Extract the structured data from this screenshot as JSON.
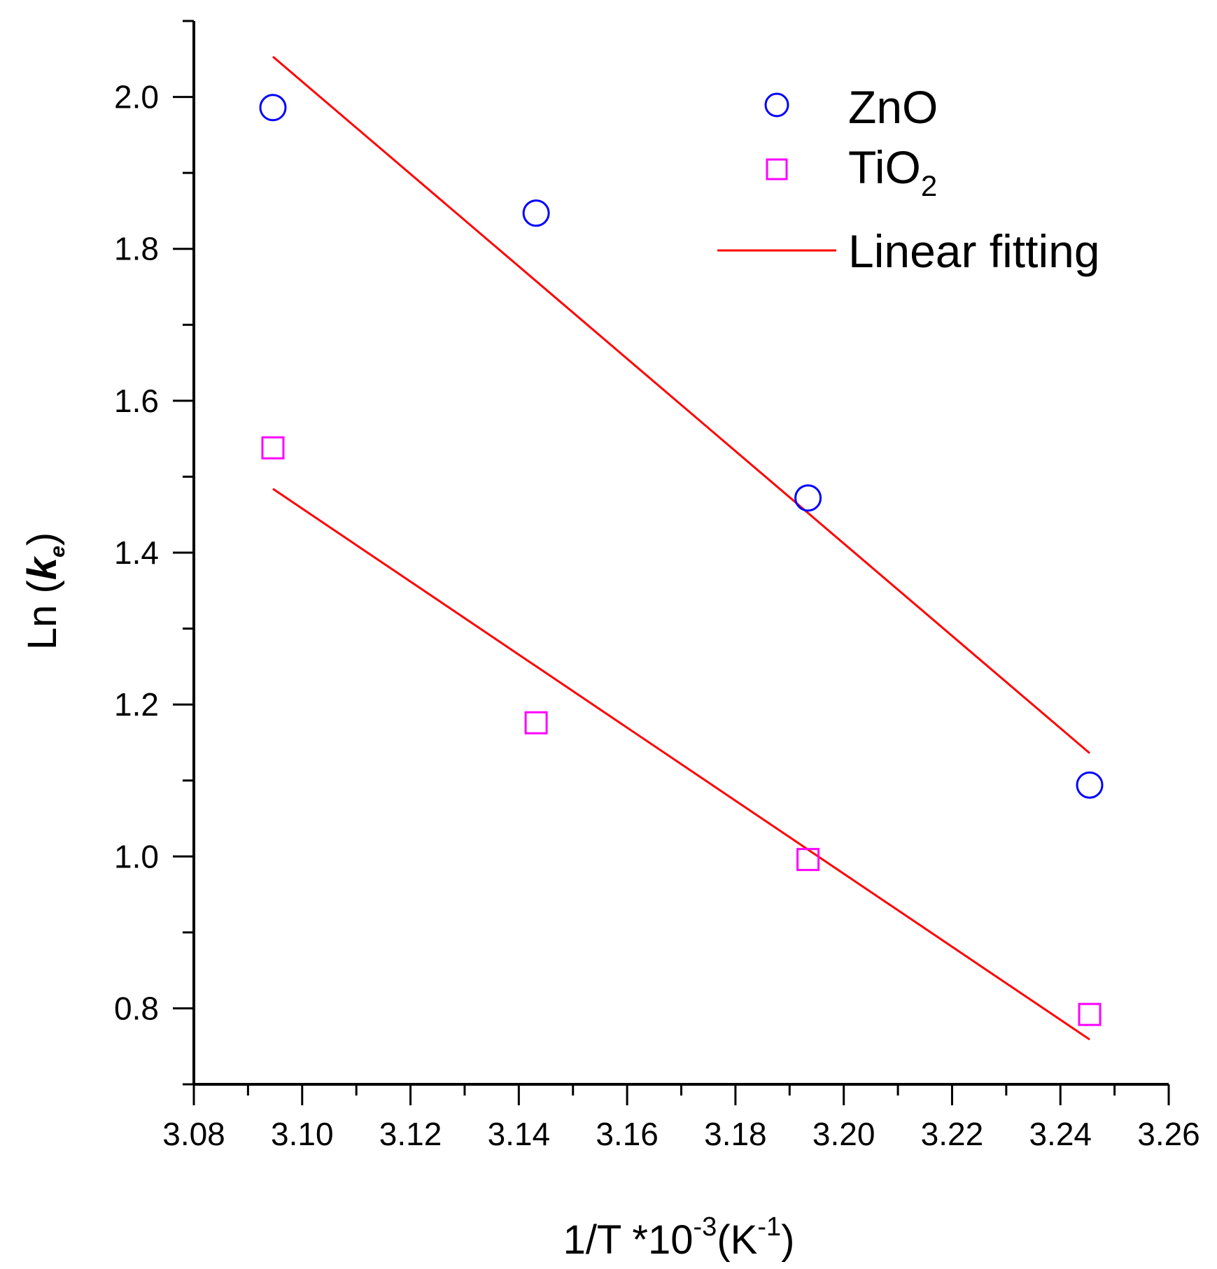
{
  "chart_data": {
    "type": "scatter",
    "title": "",
    "xlabel": {
      "base": "1/T *10",
      "sup1": "-3",
      "mid": "(K",
      "sup2": "-1",
      "end": ")"
    },
    "ylabel": {
      "base": "Ln (",
      "k": "k",
      "sub": "e",
      "end": ")"
    },
    "xlim": [
      3.08,
      3.26
    ],
    "ylim": [
      0.7,
      2.1
    ],
    "xticks": [
      "3.08",
      "3.10",
      "3.12",
      "3.14",
      "3.16",
      "3.18",
      "3.20",
      "3.22",
      "3.24",
      "3.26"
    ],
    "yticks": [
      "0.8",
      "1.0",
      "1.2",
      "1.4",
      "1.6",
      "1.8",
      "2.0"
    ],
    "grid": false,
    "legend_position": "top-right",
    "series": [
      {
        "name": "ZnO",
        "marker": "circle",
        "color": "#0000ff",
        "x": [
          3.0946,
          3.1432,
          3.1934,
          3.2454
        ],
        "y": [
          1.986,
          1.847,
          1.472,
          1.094
        ]
      },
      {
        "name": "TiO",
        "name_sub": "2",
        "marker": "square",
        "color": "#ff00ff",
        "x": [
          3.0946,
          3.1432,
          3.1934,
          3.2454
        ],
        "y": [
          1.538,
          1.176,
          0.996,
          0.792
        ]
      }
    ],
    "fits": [
      {
        "name": "Linear fitting",
        "color": "#ff0000",
        "for_series": "ZnO",
        "x": [
          3.0946,
          3.2454
        ],
        "y": [
          2.053,
          1.136
        ]
      },
      {
        "name": "Linear fitting",
        "color": "#ff0000",
        "for_series": "TiO2",
        "x": [
          3.0946,
          3.2454
        ],
        "y": [
          1.484,
          0.759
        ]
      }
    ],
    "legend": {
      "zno_label": "ZnO",
      "tio2_label": "TiO",
      "tio2_sub": "2",
      "fit_label": "Linear fitting"
    }
  }
}
